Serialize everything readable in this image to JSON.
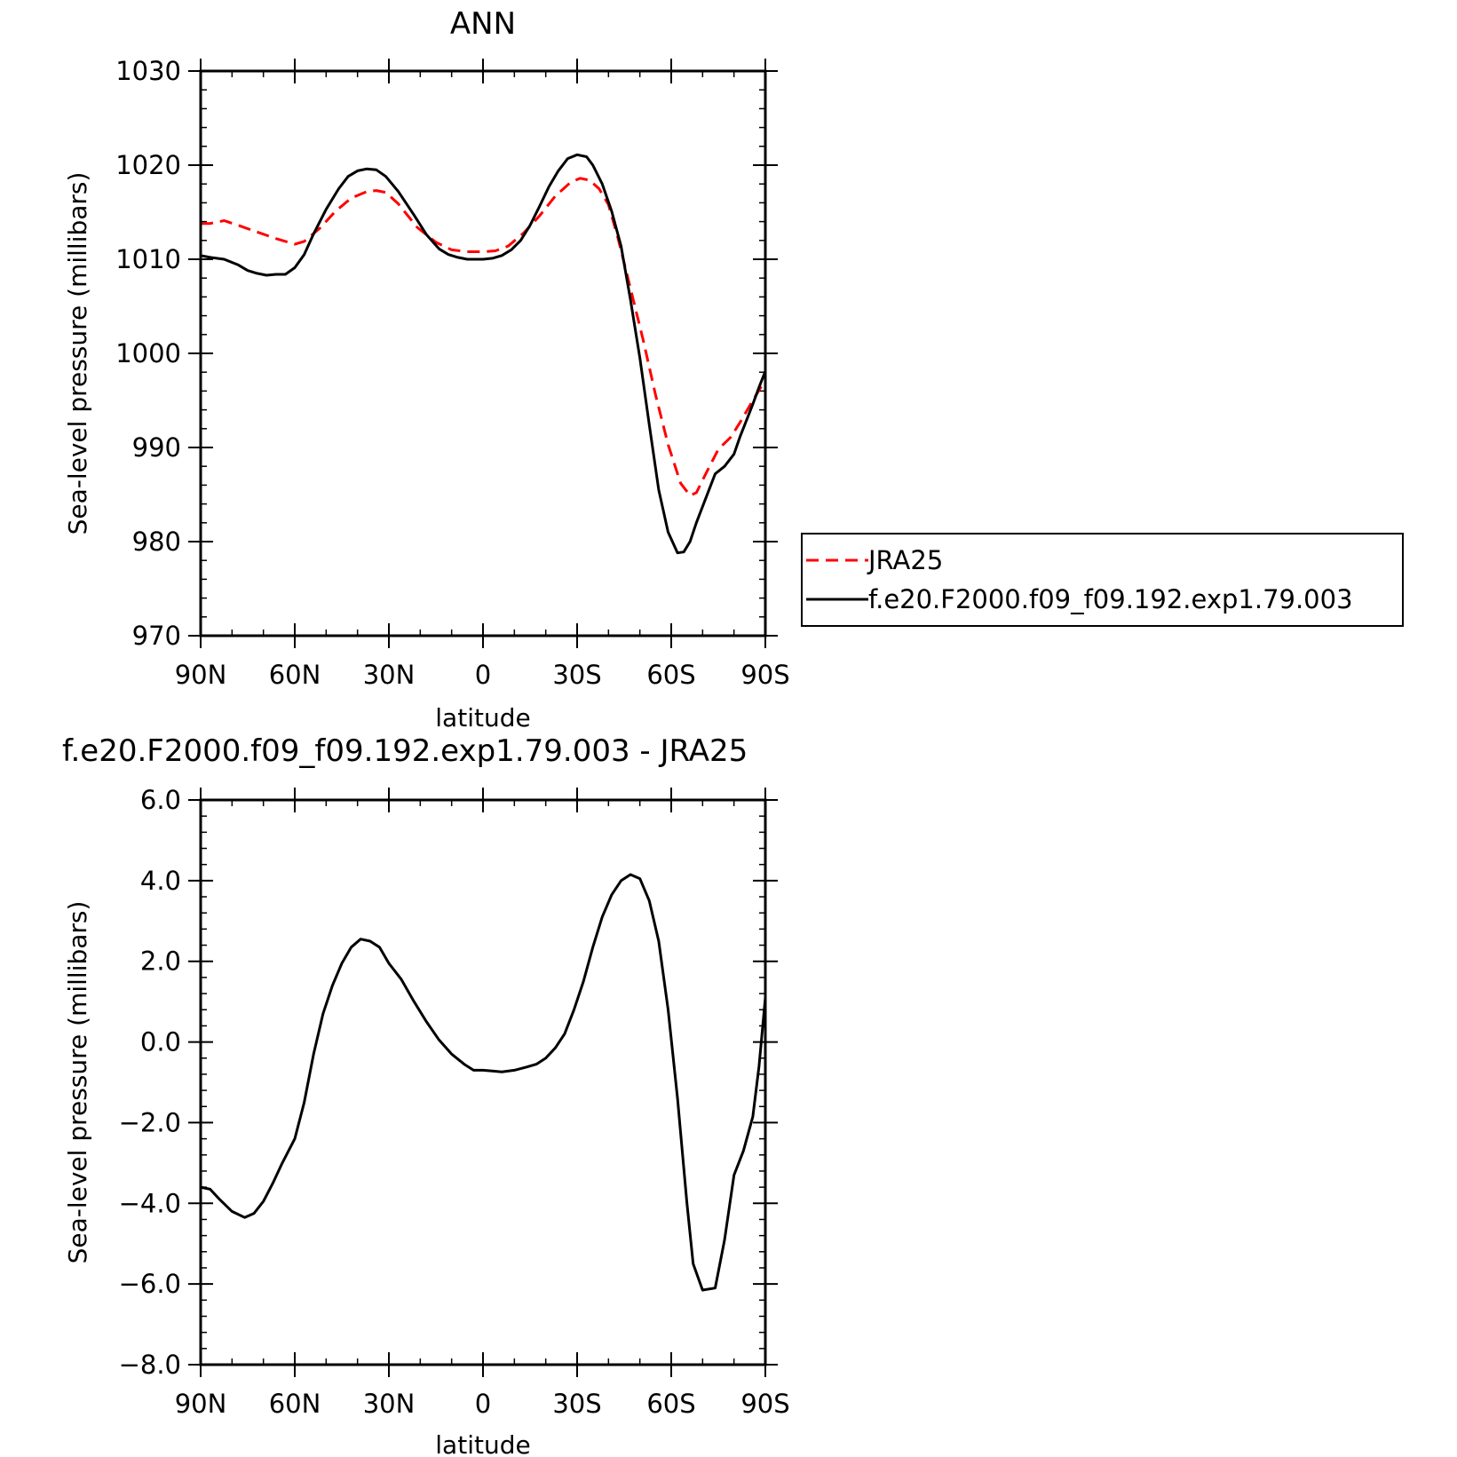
{
  "chart_data": [
    {
      "type": "line",
      "title": "ANN",
      "xlabel": "latitude",
      "ylabel": "Sea-level pressure (millibars)",
      "xlim": [
        90,
        -90
      ],
      "ylim": [
        970,
        1030
      ],
      "xticks": [
        90,
        60,
        30,
        0,
        -30,
        -60,
        -90
      ],
      "xtick_labels": [
        "90N",
        "60N",
        "30N",
        "0",
        "30S",
        "60S",
        "90S"
      ],
      "yticks": [
        970,
        980,
        990,
        1000,
        1010,
        1020,
        1030
      ],
      "ytick_labels": [
        "970",
        "980",
        "990",
        "1000",
        "1010",
        "1020",
        "1030"
      ],
      "grid": false,
      "legend_position": "right",
      "series": [
        {
          "name": "JRA25",
          "color": "#ff0000",
          "dash": "dashed",
          "x": [
            90,
            87,
            82.5,
            78,
            72,
            66,
            60,
            57,
            52,
            47,
            42,
            37,
            34,
            31,
            27,
            21,
            15,
            10,
            5,
            0,
            -4,
            -8,
            -13,
            -18,
            -23,
            -28,
            -31,
            -34,
            -37,
            -40,
            -43,
            -47,
            -51,
            -55,
            -59,
            -63,
            -66,
            -68,
            -71,
            -75,
            -79,
            -82,
            -86,
            -90
          ],
          "y": [
            1013.8,
            1013.8,
            1014.1,
            1013.6,
            1012.9,
            1012.2,
            1011.6,
            1011.9,
            1013.3,
            1015.1,
            1016.5,
            1017.2,
            1017.3,
            1017.1,
            1015.9,
            1013.4,
            1011.8,
            1011.0,
            1010.8,
            1010.8,
            1010.9,
            1011.4,
            1012.8,
            1014.6,
            1016.7,
            1018.2,
            1018.6,
            1018.4,
            1017.5,
            1015.8,
            1012.3,
            1006.9,
            1001.5,
            995.6,
            990.3,
            986.2,
            984.9,
            985.2,
            987.2,
            989.8,
            991.1,
            992.7,
            995.0,
            997.2
          ]
        },
        {
          "name": "f.e20.F2000.f09_f09.192.exp1.79.003",
          "color": "#000000",
          "dash": "solid",
          "x": [
            90,
            87,
            82.5,
            78,
            75,
            72,
            69,
            66,
            63,
            60,
            57,
            54,
            50,
            46,
            43,
            40,
            37,
            34,
            31,
            27,
            22,
            18,
            14,
            11,
            8,
            5,
            2,
            0,
            -3,
            -6,
            -9,
            -12,
            -15,
            -18,
            -21,
            -24,
            -27,
            -30,
            -33,
            -35,
            -38,
            -41,
            -44,
            -47,
            -50,
            -53,
            -56,
            -59,
            -62,
            -64,
            -66,
            -68,
            -71,
            -74,
            -77,
            -80,
            -82,
            -84,
            -86,
            -88,
            -90
          ],
          "y": [
            1010.4,
            1010.2,
            1010.0,
            1009.4,
            1008.8,
            1008.5,
            1008.3,
            1008.4,
            1008.4,
            1009.1,
            1010.5,
            1012.7,
            1015.3,
            1017.5,
            1018.8,
            1019.4,
            1019.6,
            1019.5,
            1018.8,
            1017.2,
            1014.7,
            1012.6,
            1011.1,
            1010.5,
            1010.2,
            1010.0,
            1010.0,
            1010.0,
            1010.1,
            1010.4,
            1011.0,
            1012.0,
            1013.6,
            1015.6,
            1017.7,
            1019.4,
            1020.7,
            1021.1,
            1020.9,
            1020.0,
            1018.0,
            1015.1,
            1011.4,
            1005.7,
            999.5,
            992.4,
            985.5,
            981.0,
            978.8,
            978.9,
            980.0,
            982.0,
            984.6,
            987.2,
            988.0,
            989.3,
            991.2,
            992.9,
            994.6,
            996.4,
            998.1
          ]
        }
      ]
    },
    {
      "type": "line",
      "title": "f.e20.F2000.f09_f09.192.exp1.79.003 - JRA25",
      "xlabel": "latitude",
      "ylabel": "Sea-level pressure (millibars)",
      "xlim": [
        90,
        -90
      ],
      "ylim": [
        -8.0,
        6.0
      ],
      "xticks": [
        90,
        60,
        30,
        0,
        -30,
        -60,
        -90
      ],
      "xtick_labels": [
        "90N",
        "60N",
        "30N",
        "0",
        "30S",
        "60S",
        "90S"
      ],
      "yticks": [
        -8,
        -6,
        -4,
        -2,
        0,
        2,
        4,
        6
      ],
      "ytick_labels": [
        "−8.0",
        "−6.0",
        "−4.0",
        "−2.0",
        "0.0",
        "2.0",
        "4.0",
        "6.0"
      ],
      "grid": false,
      "series": [
        {
          "color": "#000000",
          "dash": "solid",
          "x": [
            90,
            87,
            84,
            80,
            76,
            73,
            70,
            67,
            64,
            60,
            57,
            54,
            51,
            48,
            45,
            42,
            39,
            36,
            33,
            30,
            26,
            22,
            18,
            14,
            10,
            6,
            3,
            0,
            -3,
            -6,
            -10,
            -14,
            -17,
            -20,
            -23,
            -26,
            -29,
            -32,
            -35,
            -38,
            -41,
            -44,
            -47,
            -50,
            -53,
            -56,
            -59,
            -62,
            -65,
            -67,
            -70,
            -74,
            -77,
            -80,
            -83,
            -86,
            -88,
            -90
          ],
          "y": [
            -3.6,
            -3.65,
            -3.9,
            -4.2,
            -4.35,
            -4.25,
            -3.95,
            -3.5,
            -3.0,
            -2.4,
            -1.5,
            -0.3,
            0.7,
            1.4,
            1.95,
            2.35,
            2.55,
            2.5,
            2.35,
            1.95,
            1.55,
            1.0,
            0.5,
            0.05,
            -0.3,
            -0.55,
            -0.7,
            -0.7,
            -0.72,
            -0.74,
            -0.7,
            -0.62,
            -0.55,
            -0.4,
            -0.15,
            0.2,
            0.8,
            1.5,
            2.35,
            3.1,
            3.65,
            4.0,
            4.15,
            4.05,
            3.5,
            2.5,
            0.8,
            -1.4,
            -4.0,
            -5.5,
            -6.15,
            -6.1,
            -4.9,
            -3.3,
            -2.7,
            -1.85,
            -0.6,
            1.1
          ]
        }
      ]
    }
  ]
}
